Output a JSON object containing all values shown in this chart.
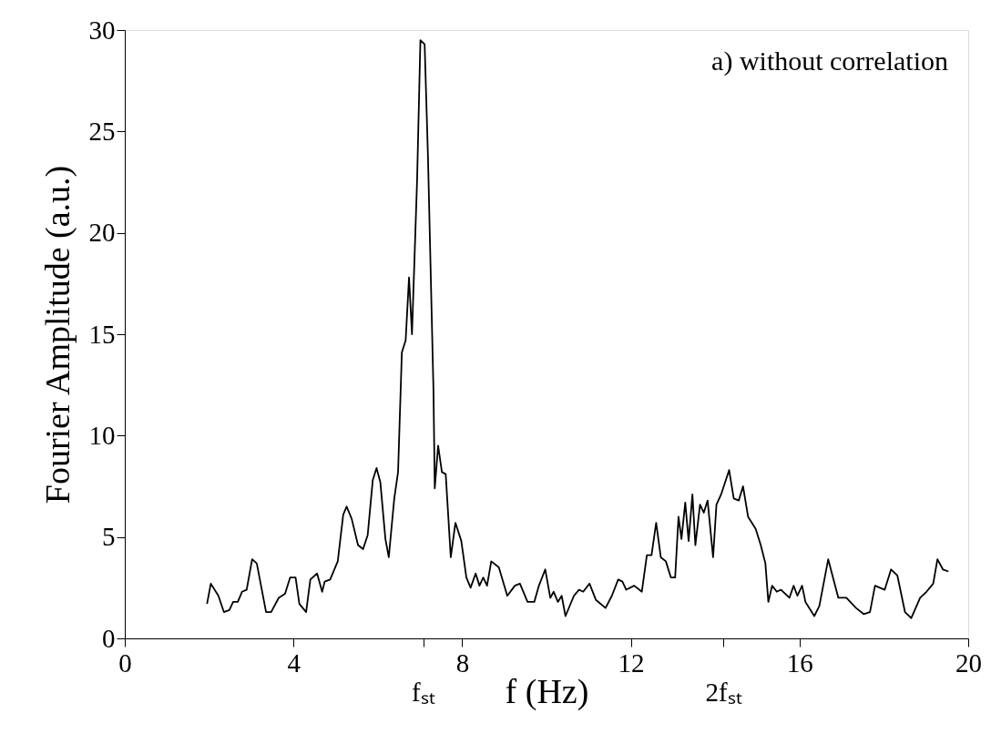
{
  "chart_data": {
    "type": "line",
    "xlabel": "f (Hz)",
    "ylabel": "Fourier Amplitude (a.u.)",
    "annotations": [
      "a) without correlation",
      "fₛₜ",
      "2fₛₜ"
    ],
    "xlim": [
      0,
      20
    ],
    "ylim": [
      0,
      30
    ],
    "xticks": [
      0,
      4,
      {
        "value": 7.08,
        "label": null
      },
      8,
      12,
      {
        "value": 14.2,
        "label": null
      },
      16,
      20
    ],
    "yticks": [
      0,
      5,
      10,
      15,
      20,
      25,
      30
    ],
    "grid": false,
    "marker": "none",
    "line_style": "solid",
    "series": [
      {
        "color": "#000000",
        "x": [
          1.95,
          2.04,
          2.22,
          2.35,
          2.48,
          2.57,
          2.68,
          2.78,
          2.89,
          3.02,
          3.13,
          3.35,
          3.47,
          3.65,
          3.8,
          3.92,
          4.05,
          4.14,
          4.3,
          4.4,
          4.56,
          4.68,
          4.74,
          4.87,
          5.05,
          5.18,
          5.26,
          5.38,
          5.53,
          5.65,
          5.76,
          5.88,
          5.97,
          6.06,
          6.18,
          6.26,
          6.39,
          6.48,
          6.57,
          6.66,
          6.74,
          6.81,
          6.93,
          7.01,
          7.11,
          7.19,
          7.32,
          7.35,
          7.43,
          7.52,
          7.61,
          7.73,
          7.84,
          7.98,
          8.1,
          8.2,
          8.32,
          8.41,
          8.5,
          8.59,
          8.69,
          8.87,
          9.07,
          9.25,
          9.37,
          9.55,
          9.71,
          9.82,
          9.97,
          10.09,
          10.17,
          10.27,
          10.36,
          10.45,
          10.65,
          10.77,
          10.87,
          11.02,
          11.17,
          11.4,
          11.55,
          11.7,
          11.8,
          11.89,
          12.08,
          12.26,
          12.38,
          12.49,
          12.6,
          12.71,
          12.83,
          12.95,
          13.05,
          13.13,
          13.2,
          13.29,
          13.37,
          13.46,
          13.53,
          13.64,
          13.73,
          13.82,
          13.95,
          14.03,
          14.14,
          14.33,
          14.44,
          14.56,
          14.66,
          14.78,
          14.96,
          15.08,
          15.19,
          15.26,
          15.35,
          15.46,
          15.56,
          15.76,
          15.86,
          15.95,
          16.06,
          16.14,
          16.35,
          16.47,
          16.68,
          16.92,
          17.11,
          17.34,
          17.52,
          17.67,
          17.79,
          18.02,
          18.17,
          18.32,
          18.5,
          18.65,
          18.86,
          19.01,
          19.17,
          19.27,
          19.4,
          19.53
        ],
        "values": [
          1.7,
          2.7,
          2.1,
          1.3,
          1.4,
          1.8,
          1.8,
          2.3,
          2.4,
          3.9,
          3.7,
          1.3,
          1.3,
          2.0,
          2.2,
          3.0,
          3.0,
          1.7,
          1.3,
          2.9,
          3.2,
          2.3,
          2.8,
          2.9,
          3.8,
          6.1,
          6.5,
          5.9,
          4.6,
          4.4,
          5.1,
          7.8,
          8.4,
          7.7,
          4.9,
          4.0,
          6.9,
          8.2,
          14.1,
          14.7,
          17.8,
          15.0,
          22.5,
          29.5,
          29.3,
          23.7,
          12.2,
          7.4,
          9.5,
          8.2,
          8.1,
          4.0,
          5.7,
          4.8,
          3.0,
          2.5,
          3.2,
          2.6,
          3.0,
          2.6,
          3.8,
          3.5,
          2.1,
          2.6,
          2.7,
          1.8,
          1.8,
          2.6,
          3.4,
          2.0,
          2.3,
          1.8,
          2.1,
          1.1,
          2.1,
          2.4,
          2.3,
          2.7,
          1.9,
          1.5,
          2.1,
          2.9,
          2.8,
          2.4,
          2.6,
          2.3,
          4.1,
          4.1,
          5.7,
          4.0,
          3.8,
          3.0,
          3.0,
          6.0,
          4.9,
          6.7,
          4.8,
          7.1,
          4.6,
          6.6,
          6.2,
          6.8,
          4.0,
          6.6,
          7.1,
          8.3,
          6.9,
          6.8,
          7.5,
          6.0,
          5.4,
          4.6,
          3.7,
          1.8,
          2.6,
          2.3,
          2.4,
          2.0,
          2.6,
          2.1,
          2.6,
          1.8,
          1.1,
          1.6,
          3.9,
          2.0,
          2.0,
          1.5,
          1.2,
          1.3,
          2.6,
          2.4,
          3.4,
          3.1,
          1.3,
          1.0,
          2.0,
          2.3,
          2.7,
          3.9,
          3.4,
          3.3
        ]
      }
    ]
  }
}
